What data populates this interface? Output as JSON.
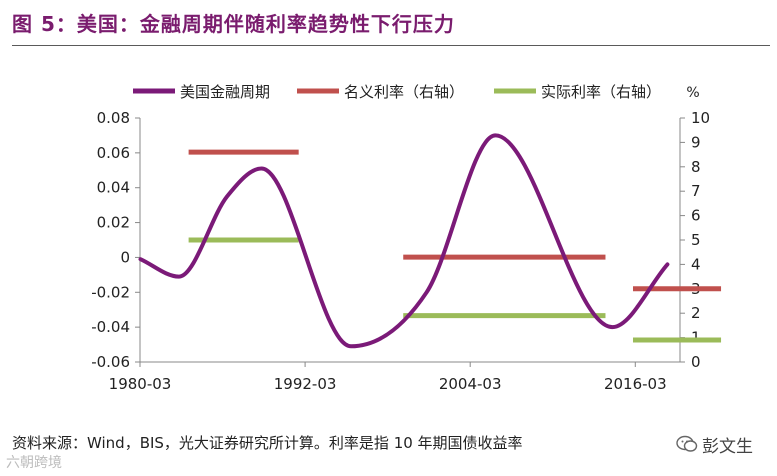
{
  "figure_title": "图 5：美国：金融周期伴随利率趋势性下行压力",
  "source_note": "资料来源：Wind，BIS，光大证券研究所计算。利率是指 10 年期国债收益率",
  "watermark": {
    "left_text": "六朝跨境",
    "right_text": "彭文生"
  },
  "colors": {
    "title": "#7a1c6e",
    "cycle": "#7b1a78",
    "nominal": "#c0504d",
    "real": "#9bbb59"
  },
  "chart_data": {
    "type": "line",
    "title": "美国：金融周期伴随利率趋势性下行压力",
    "x_ticks": [
      "1980-03",
      "1992-03",
      "2004-03",
      "2016-03"
    ],
    "x_range": [
      "1980-03",
      "2019-06"
    ],
    "left_axis": {
      "ticks": [
        "0.08",
        "0.06",
        "0.04",
        "0.02",
        "0",
        "-0.02",
        "-0.04",
        "-0.06"
      ],
      "range": [
        -0.06,
        0.08
      ]
    },
    "right_axis": {
      "label": "%",
      "ticks": [
        "10",
        "9",
        "8",
        "7",
        "6",
        "5",
        "4",
        "3",
        "2",
        "1",
        "0"
      ],
      "range": [
        0,
        10
      ]
    },
    "legend": [
      "美国金融周期",
      "名义利率（右轴）",
      "实际利率（右轴）"
    ],
    "series": [
      {
        "name": "美国金融周期",
        "axis": "left",
        "style": "curve",
        "points": [
          {
            "x": 1980.2,
            "y": -0.001
          },
          {
            "x": 1983.0,
            "y": -0.011
          },
          {
            "x": 1986.5,
            "y": 0.035
          },
          {
            "x": 1989.0,
            "y": 0.051
          },
          {
            "x": 1995.5,
            "y": -0.051
          },
          {
            "x": 2001.0,
            "y": -0.02
          },
          {
            "x": 2006.0,
            "y": 0.07
          },
          {
            "x": 2014.5,
            "y": -0.04
          },
          {
            "x": 2018.5,
            "y": -0.004
          }
        ]
      },
      {
        "name": "名义利率（右轴）",
        "axis": "right",
        "style": "segments",
        "segments": [
          {
            "start": 1983.7,
            "end": 1991.7,
            "value": 8.6
          },
          {
            "start": 1999.3,
            "end": 2014.0,
            "value": 4.3
          },
          {
            "start": 2016.0,
            "end": 2022.4,
            "value": 3.0
          }
        ]
      },
      {
        "name": "实际利率（右轴）",
        "axis": "right",
        "style": "segments",
        "segments": [
          {
            "start": 1983.7,
            "end": 1991.7,
            "value": 5.0
          },
          {
            "start": 1999.3,
            "end": 2014.0,
            "value": 1.9
          },
          {
            "start": 2016.0,
            "end": 2022.4,
            "value": 0.9
          }
        ]
      }
    ]
  }
}
